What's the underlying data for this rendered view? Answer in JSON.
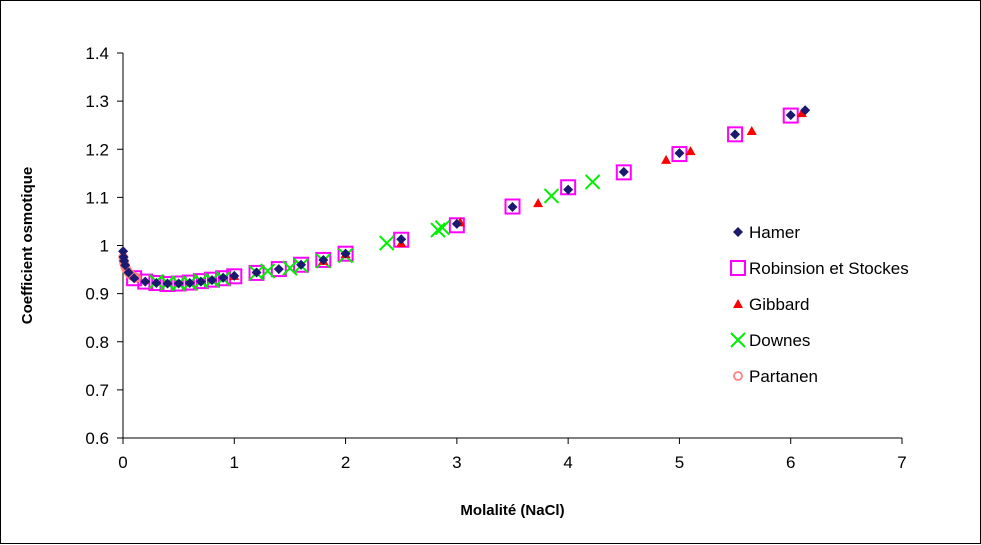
{
  "chart_data": {
    "type": "scatter",
    "xlabel": "Molalité (NaCl)",
    "ylabel": "Coefficient osmotique",
    "xlim": [
      0,
      7
    ],
    "ylim": [
      0.6,
      1.4
    ],
    "x_ticks": [
      "0",
      "1",
      "2",
      "3",
      "4",
      "5",
      "6",
      "7"
    ],
    "y_ticks": [
      "0.6",
      "0.7",
      "0.8",
      "0.9",
      "1",
      "1.1",
      "1.2",
      "1.3",
      "1.4"
    ],
    "grid": false,
    "legend_position": "right",
    "series": [
      {
        "name": "Hamer",
        "marker": "diamond",
        "color": "#1a1a6e",
        "points": [
          [
            0.001,
            0.988
          ],
          [
            0.005,
            0.976
          ],
          [
            0.01,
            0.968
          ],
          [
            0.02,
            0.959
          ],
          [
            0.05,
            0.944
          ],
          [
            0.1,
            0.932
          ],
          [
            0.2,
            0.925
          ],
          [
            0.3,
            0.922
          ],
          [
            0.4,
            0.921
          ],
          [
            0.5,
            0.921
          ],
          [
            0.6,
            0.922
          ],
          [
            0.7,
            0.925
          ],
          [
            0.8,
            0.928
          ],
          [
            0.9,
            0.933
          ],
          [
            1.0,
            0.937
          ],
          [
            1.2,
            0.944
          ],
          [
            1.4,
            0.951
          ],
          [
            1.6,
            0.96
          ],
          [
            1.8,
            0.97
          ],
          [
            2.0,
            0.983
          ],
          [
            2.5,
            1.013
          ],
          [
            3.0,
            1.045
          ],
          [
            3.5,
            1.08
          ],
          [
            4.0,
            1.116
          ],
          [
            4.5,
            1.153
          ],
          [
            5.0,
            1.192
          ],
          [
            5.5,
            1.231
          ],
          [
            6.0,
            1.271
          ],
          [
            6.13,
            1.281
          ]
        ]
      },
      {
        "name": "Robinsion et Stockes",
        "marker": "square",
        "color": "#ff00ff",
        "points": [
          [
            0.1,
            0.932
          ],
          [
            0.2,
            0.925
          ],
          [
            0.3,
            0.922
          ],
          [
            0.4,
            0.92
          ],
          [
            0.5,
            0.921
          ],
          [
            0.6,
            0.923
          ],
          [
            0.7,
            0.926
          ],
          [
            0.8,
            0.929
          ],
          [
            0.9,
            0.932
          ],
          [
            1.0,
            0.936
          ],
          [
            1.2,
            0.943
          ],
          [
            1.4,
            0.951
          ],
          [
            1.6,
            0.96
          ],
          [
            1.8,
            0.97
          ],
          [
            2.0,
            0.983
          ],
          [
            2.5,
            1.012
          ],
          [
            3.0,
            1.042
          ],
          [
            3.5,
            1.081
          ],
          [
            4.0,
            1.121
          ],
          [
            4.5,
            1.152
          ],
          [
            5.0,
            1.19
          ],
          [
            5.5,
            1.231
          ],
          [
            6.0,
            1.27
          ]
        ]
      },
      {
        "name": "Gibbard",
        "marker": "triangle",
        "color": "#ff0000",
        "points": [
          [
            1.0,
            0.937
          ],
          [
            1.8,
            0.968
          ],
          [
            2.0,
            0.982
          ],
          [
            2.5,
            1.005
          ],
          [
            3.03,
            1.048
          ],
          [
            3.73,
            1.088
          ],
          [
            4.88,
            1.178
          ],
          [
            5.1,
            1.196
          ],
          [
            5.65,
            1.238
          ],
          [
            6.1,
            1.275
          ]
        ]
      },
      {
        "name": "Downes",
        "marker": "x",
        "color": "#00ee00",
        "points": [
          [
            0.3,
            0.925
          ],
          [
            0.4,
            0.922
          ],
          [
            0.5,
            0.921
          ],
          [
            0.6,
            0.922
          ],
          [
            0.7,
            0.926
          ],
          [
            0.8,
            0.928
          ],
          [
            0.9,
            0.931
          ],
          [
            1.2,
            0.943
          ],
          [
            1.3,
            0.947
          ],
          [
            1.5,
            0.953
          ],
          [
            1.6,
            0.958
          ],
          [
            1.8,
            0.968
          ],
          [
            2.0,
            0.979
          ],
          [
            2.37,
            1.005
          ],
          [
            2.83,
            1.032
          ],
          [
            2.87,
            1.037
          ],
          [
            3.85,
            1.103
          ],
          [
            4.22,
            1.132
          ]
        ]
      },
      {
        "name": "Partanen",
        "marker": "circle",
        "color": "#ff8080",
        "points": [
          [
            0.002,
            0.976
          ],
          [
            0.005,
            0.97
          ],
          [
            0.01,
            0.964
          ],
          [
            0.015,
            0.96
          ],
          [
            0.02,
            0.956
          ],
          [
            0.03,
            0.951
          ],
          [
            0.04,
            0.947
          ],
          [
            0.05,
            0.944
          ],
          [
            0.06,
            0.941
          ],
          [
            0.07,
            0.939
          ],
          [
            0.08,
            0.937
          ],
          [
            0.1,
            0.935
          ],
          [
            0.12,
            0.933
          ]
        ]
      }
    ]
  }
}
